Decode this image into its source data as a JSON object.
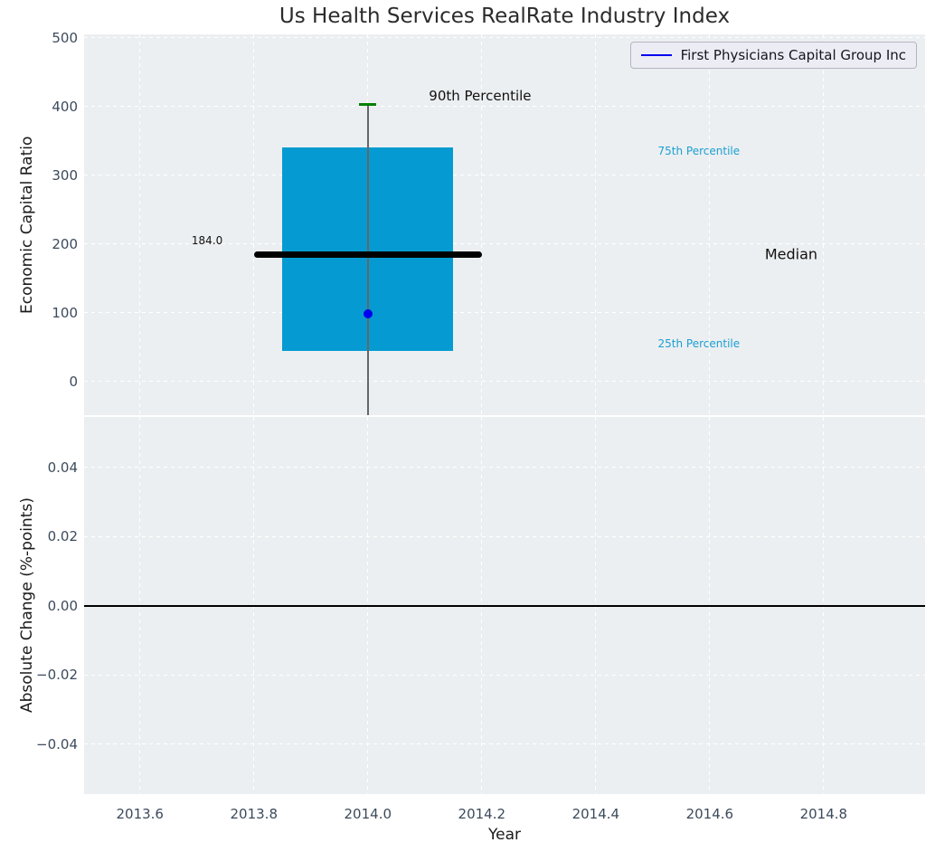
{
  "figure_title": "Us Health Services RealRate Industry Index",
  "colors": {
    "axes_background": "#eceff1",
    "grid": "#ffffff",
    "box_fill": "#059bd2",
    "median_line": "#000000",
    "percentile_cap": "#007f00",
    "whisker": "#666666",
    "company_point": "#0000f0",
    "legend_line": "#0000ee",
    "tick_label": "#3c4a5c",
    "percentile_text": "#1a9fd3",
    "zero_line": "#000000"
  },
  "chart_data": [
    {
      "type": "boxplot",
      "title": "Us Health Services RealRate Industry Index",
      "ylabel": "Economic Capital Ratio",
      "xlim": [
        2013.502,
        2014.978
      ],
      "ylim": [
        -49,
        505
      ],
      "grid": true,
      "grid_x": [
        2013.6,
        2013.8,
        2014.0,
        2014.2,
        2014.4,
        2014.6,
        2014.8
      ],
      "yticks": [
        {
          "v": 0,
          "label": "0"
        },
        {
          "v": 100,
          "label": "100"
        },
        {
          "v": 200,
          "label": "200"
        },
        {
          "v": 300,
          "label": "300"
        },
        {
          "v": 400,
          "label": "400"
        },
        {
          "v": 500,
          "label": "500"
        }
      ],
      "box": {
        "x": 2014.0,
        "box_left": 2013.85,
        "box_right": 2014.15,
        "q1": 44,
        "median": 184.0,
        "q3": 341,
        "p90": 403,
        "whisker_low": -49,
        "whisker_low_clipped_at_axis": true,
        "cap_left": 2013.985,
        "cap_right": 2014.015,
        "median_line_left": 2013.8,
        "median_line_right": 2014.2
      },
      "point": {
        "name": "First Physicians Capital Group Inc",
        "x": 2014.0,
        "y": 98
      },
      "series": [
        {
          "name": "First Physicians Capital Group Inc",
          "x": [
            2014.0
          ],
          "y": [
            98
          ]
        }
      ],
      "annotations": [
        {
          "text": "90th Percentile",
          "x": 2014.197,
          "y": 415,
          "color": "#111111",
          "size": 15
        },
        {
          "text": "75th Percentile",
          "x": 2014.581,
          "y": 335,
          "color": "#1a9fd3",
          "size": 12
        },
        {
          "text": "Median",
          "x": 2014.743,
          "y": 185,
          "color": "#111111",
          "size": 16
        },
        {
          "text": "25th Percentile",
          "x": 2014.581,
          "y": 55,
          "color": "#1a9fd3",
          "size": 12
        },
        {
          "text": "184.0",
          "x": 2013.718,
          "y": 205,
          "color": "#111111",
          "size": 12
        }
      ],
      "legend": {
        "label": "First Physicians Capital Group Inc",
        "line_color": "#0000ee",
        "position": "upper right"
      }
    },
    {
      "type": "line",
      "ylabel": "Absolute Change (%-points)",
      "xlabel": "Year",
      "xlim": [
        2013.502,
        2014.978
      ],
      "ylim": [
        -0.0544,
        0.0546
      ],
      "grid": true,
      "grid_x": [
        2013.6,
        2013.8,
        2014.0,
        2014.2,
        2014.4,
        2014.6,
        2014.8
      ],
      "xticks": [
        {
          "v": 2013.6,
          "label": "2013.6"
        },
        {
          "v": 2013.8,
          "label": "2013.8"
        },
        {
          "v": 2014.0,
          "label": "2014.0"
        },
        {
          "v": 2014.2,
          "label": "2014.2"
        },
        {
          "v": 2014.4,
          "label": "2014.4"
        },
        {
          "v": 2014.6,
          "label": "2014.6"
        },
        {
          "v": 2014.8,
          "label": "2014.8"
        }
      ],
      "yticks": [
        {
          "v": 0.04,
          "label": "0.04"
        },
        {
          "v": 0.02,
          "label": "0.02"
        },
        {
          "v": 0.0,
          "label": "0.00"
        },
        {
          "v": -0.02,
          "label": "−0.02"
        },
        {
          "v": -0.04,
          "label": "−0.04"
        }
      ],
      "zero_line": 0.0,
      "series": []
    }
  ]
}
